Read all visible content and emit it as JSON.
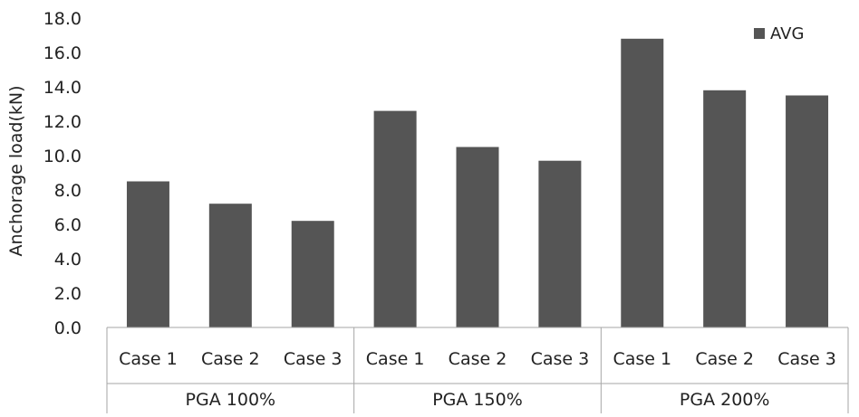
{
  "chart_data": {
    "type": "bar",
    "ylabel": "Anchorage load(kN)",
    "ylim": [
      0,
      18
    ],
    "y_ticks": [
      "0.0",
      "2.0",
      "4.0",
      "6.0",
      "8.0",
      "10.0",
      "12.0",
      "14.0",
      "16.0",
      "18.0"
    ],
    "gridlines": false,
    "legend_position": "top-right",
    "groups": [
      {
        "label": "PGA 100%",
        "categories": [
          "Case 1",
          "Case 2",
          "Case 3"
        ]
      },
      {
        "label": "PGA 150%",
        "categories": [
          "Case 1",
          "Case 2",
          "Case 3"
        ]
      },
      {
        "label": "PGA 200%",
        "categories": [
          "Case 1",
          "Case 2",
          "Case 3"
        ]
      }
    ],
    "series": [
      {
        "name": "AVG",
        "color": "#555555",
        "values": [
          8.5,
          7.2,
          6.2,
          12.6,
          10.5,
          9.7,
          16.8,
          13.8,
          13.5
        ]
      }
    ]
  }
}
